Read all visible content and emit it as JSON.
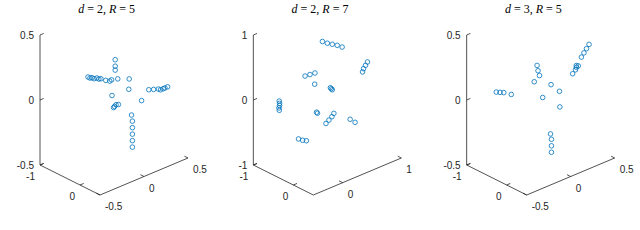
{
  "chart_data": [
    {
      "type": "scatter3d",
      "title": "d = 2, R = 5",
      "color": "#0072bd",
      "marker": "circle",
      "x": [
        0,
        0,
        0,
        0,
        0.01,
        0.01,
        0.01,
        0.02,
        0.02,
        0.45,
        0.42,
        0.4,
        0.37,
        0.35,
        0.3,
        0.25,
        0.05,
        0.05,
        0.05,
        0.05,
        0.05,
        0.04,
        -0.1,
        -0.1,
        -0.1,
        -0.08,
        -0.3,
        -0.28,
        -0.25,
        -0.2,
        0.1,
        0.15,
        -0.05,
        0.2,
        0
      ],
      "y": [
        -0.9,
        -0.85,
        -0.8,
        -0.75,
        -0.7,
        -0.65,
        -0.6,
        -0.5,
        -0.4,
        0.1,
        0.1,
        0.1,
        0.1,
        0.09,
        0.08,
        0.07,
        0.1,
        0.1,
        0.1,
        0.1,
        0.1,
        0.1,
        0,
        0,
        0,
        0.02,
        0.4,
        0.38,
        0.35,
        0.3,
        -0.1,
        -0.2,
        -0.2,
        0,
        -0.3
      ],
      "z": [
        0.05,
        0.05,
        0.06,
        0.06,
        0.07,
        0.07,
        0.08,
        0.08,
        0.09,
        0,
        0,
        0,
        0,
        0.01,
        0.02,
        0.03,
        -0.35,
        -0.3,
        -0.25,
        -0.2,
        -0.15,
        -0.1,
        0.35,
        0.3,
        0.27,
        0.2,
        0.1,
        0.1,
        0.1,
        0.08,
        0.05,
        0.1,
        0.15,
        -0.05,
        0
      ],
      "xlim": [
        -0.5,
        0.5
      ],
      "xticks": [
        -0.5,
        0,
        0.5
      ],
      "ylim": [
        -1,
        0.5
      ],
      "yticks": [
        -1,
        0
      ],
      "zlim": [
        -0.5,
        0.5
      ],
      "zticks": [
        -0.5,
        0,
        0.5
      ]
    },
    {
      "type": "scatter3d",
      "title": "d = 2, R = 7",
      "color": "#0072bd",
      "marker": "circle",
      "x": [
        0.2,
        0.25,
        0.3,
        0.35,
        0.4,
        0.9,
        0.88,
        0.86,
        0.85,
        0.6,
        0.58,
        0.55,
        0.52,
        0.2,
        0.15,
        0.1,
        -0.4,
        -0.38,
        -0.36,
        -0.35,
        -0.33,
        -0.3,
        -0.25,
        -0.2,
        0.2,
        0.25,
        0.3,
        0.1,
        0.15,
        0.4,
        0.45,
        0
      ],
      "y": [
        -0.3,
        -0.25,
        -0.2,
        -0.15,
        -0.1,
        -0.2,
        -0.22,
        -0.24,
        -0.25,
        -0.6,
        -0.62,
        -0.65,
        -0.68,
        -0.7,
        -0.72,
        -0.75,
        -0.5,
        -0.52,
        -0.55,
        -0.58,
        -0.6,
        0,
        0.05,
        0.1,
        -0.1,
        -0.15,
        -0.2,
        -0.3,
        -0.35,
        0.1,
        0.15,
        -0.2
      ],
      "z": [
        0.85,
        0.82,
        0.8,
        0.78,
        0.75,
        0.3,
        0.25,
        0.2,
        0.15,
        -0.5,
        -0.55,
        -0.6,
        -0.65,
        -0.8,
        -0.78,
        -0.75,
        0.1,
        0.05,
        0,
        -0.05,
        -0.1,
        0.6,
        0.62,
        0.64,
        0.2,
        0.15,
        0.1,
        -0.2,
        -0.25,
        -0.3,
        -0.35,
        0.3
      ],
      "xlim": [
        -0.5,
        1
      ],
      "xticks": [
        0,
        1
      ],
      "ylim": [
        -1,
        0.5
      ],
      "yticks": [
        -1,
        0
      ],
      "zlim": [
        -1,
        1
      ],
      "zticks": [
        -1,
        0,
        1
      ]
    },
    {
      "type": "scatter3d",
      "title": "d = 3, R = 5",
      "color": "#0072bd",
      "marker": "circle",
      "x": [
        0.3,
        0.28,
        0.26,
        0.24,
        0.2,
        -0.3,
        -0.28,
        -0.26,
        -0.22,
        0.45,
        0.42,
        0.4,
        0.35,
        0.1,
        0.1,
        0.1,
        0.08,
        -0.2,
        -0.18,
        -0.15,
        0.05,
        0,
        0.1,
        -0.05,
        0.15
      ],
      "y": [
        0.3,
        0.28,
        0.26,
        0.24,
        0.2,
        -0.7,
        -0.65,
        -0.6,
        -0.5,
        -0.3,
        -0.28,
        -0.26,
        -0.22,
        -0.2,
        -0.2,
        -0.2,
        -0.18,
        0.1,
        0.08,
        0.05,
        -0.1,
        -0.2,
        0,
        -0.3,
        -0.1
      ],
      "z": [
        0.4,
        0.37,
        0.34,
        0.31,
        0.25,
        0.05,
        0.05,
        0.05,
        0.04,
        0.1,
        0.1,
        0.09,
        0.08,
        -0.45,
        -0.4,
        -0.35,
        -0.3,
        0.35,
        0.3,
        0.25,
        0.1,
        0,
        0.05,
        0.12,
        -0.1
      ],
      "xlim": [
        -0.5,
        0.5
      ],
      "xticks": [
        -0.5,
        0,
        0.5
      ],
      "ylim": [
        -1,
        0.5
      ],
      "yticks": [
        -1,
        0
      ],
      "zlim": [
        -0.5,
        0.5
      ],
      "zticks": [
        -0.5,
        0,
        0.5
      ]
    }
  ]
}
